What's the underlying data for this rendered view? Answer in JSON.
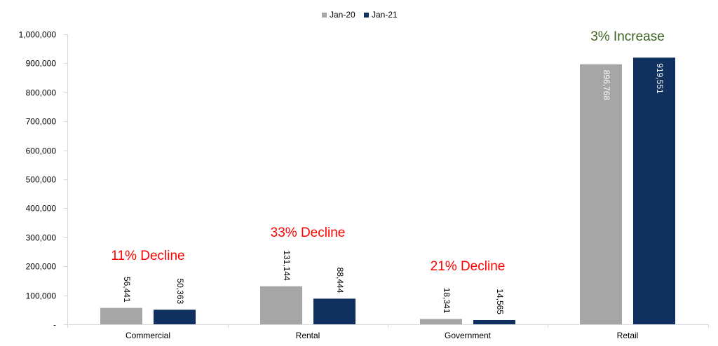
{
  "chart_data": {
    "type": "bar",
    "categories": [
      "Commercial",
      "Rental",
      "Government",
      "Retail"
    ],
    "series": [
      {
        "name": "Jan-20",
        "color": "#a6a6a6",
        "values": [
          56441,
          131144,
          18341,
          896768
        ],
        "labels": [
          "56,441",
          "131,144",
          "18,341",
          "896,768"
        ]
      },
      {
        "name": "Jan-21",
        "color": "#10305f",
        "values": [
          50363,
          88444,
          14565,
          919551
        ],
        "labels": [
          "50,363",
          "88,444",
          "14,565",
          "919,551"
        ]
      }
    ],
    "ylim": [
      0,
      1000000
    ],
    "yticks": [
      {
        "value": 0,
        "label": "-"
      },
      {
        "value": 100000,
        "label": "100,000"
      },
      {
        "value": 200000,
        "label": "200,000"
      },
      {
        "value": 300000,
        "label": "300,000"
      },
      {
        "value": 400000,
        "label": "400,000"
      },
      {
        "value": 500000,
        "label": "500,000"
      },
      {
        "value": 600000,
        "label": "600,000"
      },
      {
        "value": 700000,
        "label": "700,000"
      },
      {
        "value": 800000,
        "label": "800,000"
      },
      {
        "value": 900000,
        "label": "900,000"
      },
      {
        "value": 1000000,
        "label": "1,000,000"
      }
    ],
    "annotations": [
      {
        "category": "Commercial",
        "text": "11% Decline",
        "color": "#ff0000"
      },
      {
        "category": "Rental",
        "text": "33% Decline",
        "color": "#ff0000"
      },
      {
        "category": "Government",
        "text": "21% Decline",
        "color": "#ff0000"
      },
      {
        "category": "Retail",
        "text": "3% Increase",
        "color": "#3a5f1e"
      }
    ],
    "grid": false,
    "legend_position": "top-center",
    "title": "",
    "xlabel": "",
    "ylabel": ""
  }
}
